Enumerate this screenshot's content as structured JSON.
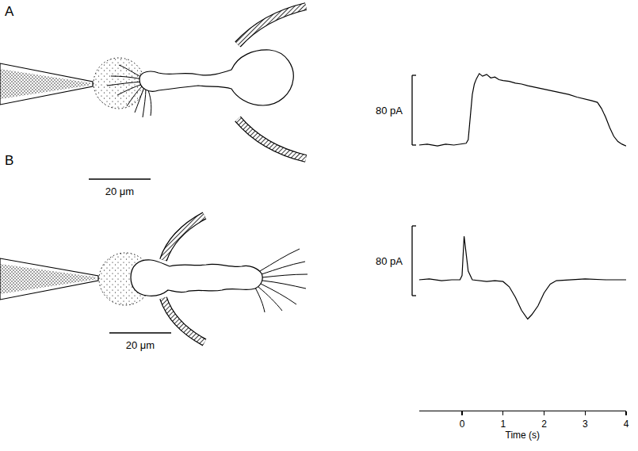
{
  "diagrams": [
    {
      "label": "A",
      "scale_bar": {
        "value": 20,
        "label": "20 μm"
      }
    },
    {
      "label": "B",
      "scale_bar": {
        "value": 20,
        "label": "20 μm"
      }
    }
  ],
  "chart_data": [
    {
      "type": "line",
      "color": "#000000",
      "tick_labels": false,
      "ylim": [
        -15,
        90
      ],
      "scale_bar": {
        "value": 80,
        "label": "80 pA"
      },
      "x": [
        -1.05,
        -0.85,
        -0.6,
        -0.4,
        -0.2,
        0.0,
        0.1,
        0.15,
        0.2,
        0.25,
        0.3,
        0.35,
        0.42,
        0.5,
        0.6,
        0.7,
        0.8,
        0.9,
        1.0,
        1.15,
        1.3,
        1.45,
        1.6,
        1.8,
        2.0,
        2.2,
        2.4,
        2.6,
        2.8,
        3.0,
        3.15,
        3.3,
        3.4,
        3.5,
        3.6,
        3.7,
        3.8,
        3.9,
        4.0
      ],
      "values": [
        0,
        1,
        -1,
        1,
        0,
        1,
        2,
        6,
        35,
        58,
        70,
        76,
        82,
        79,
        81,
        77,
        78,
        75,
        74,
        73,
        71,
        70,
        68,
        66,
        64,
        62,
        60,
        58,
        55,
        53,
        51,
        49,
        42,
        32,
        20,
        10,
        4,
        1,
        -1
      ]
    },
    {
      "type": "line",
      "color": "#000000",
      "tick_labels": "x",
      "xlim": [
        -1.05,
        4
      ],
      "xticks": [
        0,
        1,
        2,
        3,
        4
      ],
      "xlabel": "Time (s)",
      "ylim": [
        -150,
        70
      ],
      "scale_bar": {
        "value": 80,
        "label": "80 pA"
      },
      "x": [
        -1.05,
        -0.8,
        -0.5,
        -0.25,
        -0.05,
        0.0,
        0.05,
        0.1,
        0.15,
        0.25,
        0.4,
        0.6,
        0.8,
        1.0,
        1.15,
        1.3,
        1.45,
        1.55,
        1.6,
        1.7,
        1.85,
        2.0,
        2.15,
        2.3,
        2.6,
        3.0,
        3.5,
        4.0
      ],
      "values": [
        0,
        1,
        -1,
        0,
        0,
        5,
        50,
        30,
        10,
        0,
        -1,
        -2,
        -1,
        -2,
        -8,
        -20,
        -35,
        -42,
        -45,
        -40,
        -30,
        -15,
        -5,
        -1,
        0,
        1,
        0,
        0
      ]
    }
  ]
}
